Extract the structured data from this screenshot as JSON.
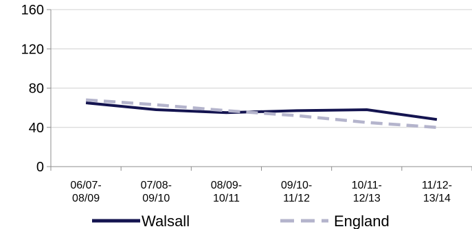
{
  "chart_data": {
    "type": "line",
    "categories": [
      [
        "06/07-",
        "08/09"
      ],
      [
        "07/08-",
        "09/10"
      ],
      [
        "08/09-",
        "10/11"
      ],
      [
        "09/10-",
        "11/12"
      ],
      [
        "10/11-",
        "12/13"
      ],
      [
        "11/12-",
        "13/14"
      ]
    ],
    "series": [
      {
        "name": "Walsall",
        "values": [
          65,
          58,
          55,
          57,
          58,
          48
        ],
        "color": "#141450",
        "style": "solid"
      },
      {
        "name": "England",
        "values": [
          68,
          63,
          57,
          52,
          45,
          40
        ],
        "color": "#b4b4cc",
        "style": "dashed"
      }
    ],
    "ylim": [
      0,
      160
    ],
    "yticks": [
      0,
      40,
      80,
      120,
      160
    ],
    "grid": true,
    "legend_position": "bottom"
  }
}
